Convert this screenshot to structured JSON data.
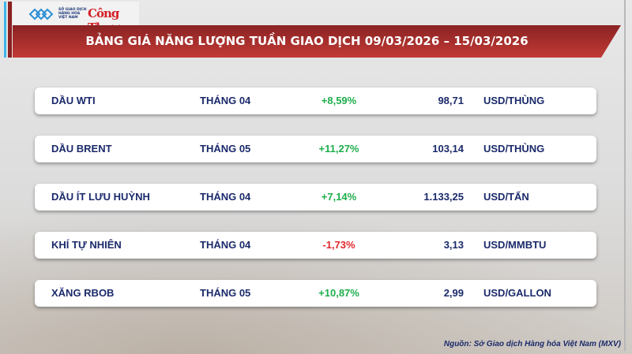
{
  "logos": {
    "exchange": "SỞ GIAO DỊCH HÀNG HÓA VIỆT NAM",
    "newspaper": "Công Thương"
  },
  "title": "BẢNG GIÁ NĂNG LƯỢNG TUẦN GIAO DỊCH 09/03/2026 – 15/03/2026",
  "colors": {
    "banner": "#b0302e",
    "text": "#1b2a6b",
    "up": "#1fae4b",
    "down": "#e0262b"
  },
  "rows": [
    {
      "name": "DẦU WTI",
      "month": "THÁNG 04",
      "change": "+8,59%",
      "direction": "up",
      "price": "98,71",
      "unit": "USD/THÙNG"
    },
    {
      "name": "DẦU BRENT",
      "month": "THÁNG 05",
      "change": "+11,27%",
      "direction": "up",
      "price": "103,14",
      "unit": "USD/THÙNG"
    },
    {
      "name": "DẦU ÍT LƯU HUỲNH",
      "month": "THÁNG 04",
      "change": "+7,14%",
      "direction": "up",
      "price": "1.133,25",
      "unit": "USD/TẤN"
    },
    {
      "name": "KHÍ TỰ NHIÊN",
      "month": "THÁNG 04",
      "change": "-1,73%",
      "direction": "down",
      "price": "3,13",
      "unit": "USD/MMBTU"
    },
    {
      "name": "XĂNG RBOB",
      "month": "THÁNG 05",
      "change": "+10,87%",
      "direction": "up",
      "price": "2,99",
      "unit": "USD/GALLON"
    }
  ],
  "source": "Nguồn: Sở Giao dịch Hàng hóa Việt Nam (MXV)"
}
